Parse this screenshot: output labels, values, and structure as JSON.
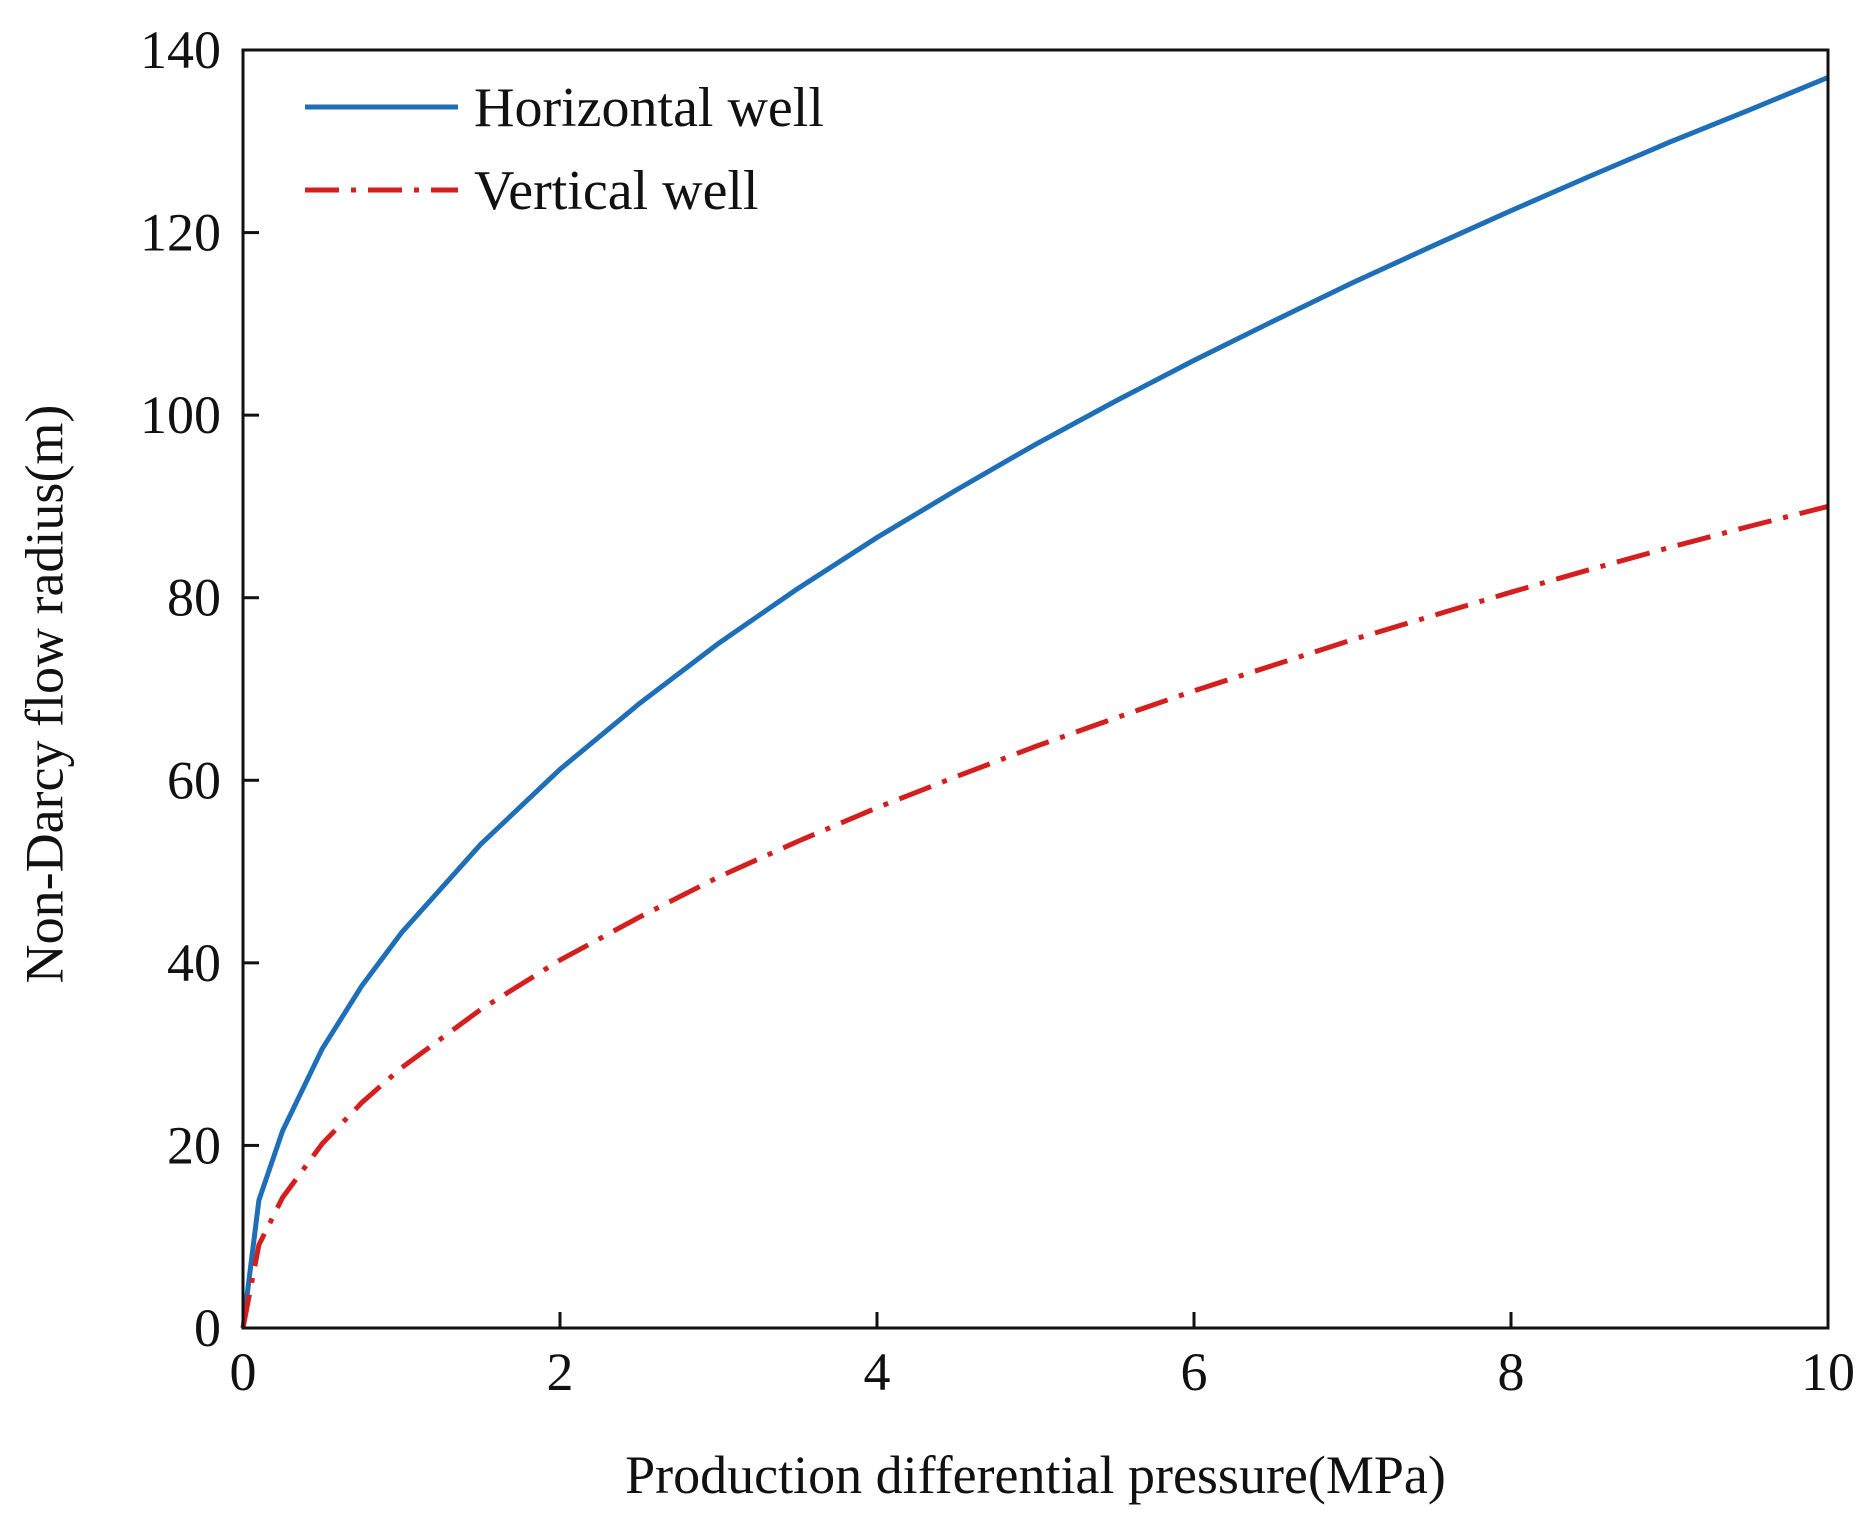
{
  "chart_data": {
    "type": "line",
    "title": "",
    "xlabel": "Production differential pressure(MPa)",
    "ylabel": "Non-Darcy flow radius(m)",
    "xlim": [
      0,
      10
    ],
    "ylim": [
      0,
      140
    ],
    "xticks": [
      0,
      2,
      4,
      6,
      8,
      10
    ],
    "yticks": [
      0,
      20,
      40,
      60,
      80,
      100,
      120,
      140
    ],
    "xtick_labels": [
      "0",
      "2",
      "4",
      "6",
      "8",
      "10"
    ],
    "ytick_labels": [
      "0",
      "20",
      "40",
      "60",
      "80",
      "100",
      "120",
      "140"
    ],
    "grid": false,
    "legend_position": "top-left",
    "series": [
      {
        "name": "Horizontal well",
        "color": "#1f6fb8",
        "style": "solid",
        "x": [
          0,
          0.1,
          0.25,
          0.5,
          0.75,
          1,
          1.5,
          2,
          2.5,
          3,
          3.5,
          4,
          4.5,
          5,
          5.5,
          6,
          6.5,
          7,
          7.5,
          8,
          8.5,
          9,
          9.5,
          10
        ],
        "y": [
          0,
          14,
          21.6,
          30.6,
          37.5,
          43.3,
          53,
          61.2,
          68.4,
          75,
          81,
          86.6,
          91.8,
          96.8,
          101.5,
          106,
          110.3,
          114.5,
          118.5,
          122.4,
          126.2,
          129.9,
          133.4,
          137
        ]
      },
      {
        "name": "Vertical well",
        "color": "#d41f1f",
        "style": "dash-dot",
        "x": [
          0,
          0.1,
          0.25,
          0.5,
          0.75,
          1,
          1.5,
          2,
          2.5,
          3,
          3.5,
          4,
          4.5,
          5,
          5.5,
          6,
          6.5,
          7,
          7.5,
          8,
          8.5,
          9,
          9.5,
          10
        ],
        "y": [
          0,
          9.1,
          14.3,
          20.2,
          24.7,
          28.5,
          34.9,
          40.3,
          45,
          49.4,
          53.3,
          57,
          60.4,
          63.7,
          66.8,
          69.8,
          72.6,
          75.4,
          78,
          80.6,
          83.1,
          85.5,
          87.8,
          90
        ]
      }
    ]
  }
}
